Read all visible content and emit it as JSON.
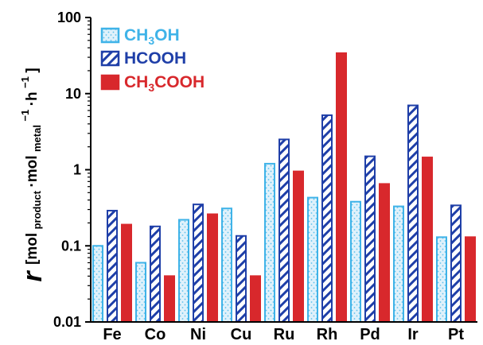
{
  "chart_data": {
    "type": "bar",
    "scale": "log",
    "ylim": [
      0.01,
      100
    ],
    "yticks": [
      "0.01",
      "0.1",
      "1",
      "10",
      "100"
    ],
    "ylabel": {
      "symbol": "r",
      "open": "[mol",
      "sub1": "product",
      "dot1": "·mol",
      "sub2": "metal",
      "sup1": "−1",
      "dot2": "·h",
      "sup2": "−1",
      "close": "]"
    },
    "categories": [
      "Fe",
      "Co",
      "Ni",
      "Cu",
      "Ru",
      "Rh",
      "Pd",
      "Ir",
      "Pt"
    ],
    "series": [
      {
        "name": "CH3OH",
        "legend": {
          "a": "CH",
          "sub": "3",
          "b": "OH"
        },
        "color": "#3fb3e8",
        "fill": "dotted",
        "values": [
          0.1,
          0.06,
          0.22,
          0.31,
          1.2,
          0.43,
          0.38,
          0.33,
          0.13
        ]
      },
      {
        "name": "HCOOH",
        "legend": {
          "a": "HCOOH",
          "sub": "",
          "b": ""
        },
        "color": "#1f3fa8",
        "fill": "hatched",
        "values": [
          0.29,
          0.18,
          0.35,
          0.135,
          2.5,
          5.2,
          1.5,
          7.0,
          0.34
        ]
      },
      {
        "name": "CH3COOH",
        "legend": {
          "a": "CH",
          "sub": "3",
          "b": "COOH"
        },
        "color": "#d8282c",
        "fill": "solid",
        "values": [
          0.19,
          0.04,
          0.26,
          0.04,
          0.95,
          34,
          0.65,
          1.45,
          0.13
        ]
      }
    ],
    "grid": false,
    "legend_position": "top-left"
  }
}
